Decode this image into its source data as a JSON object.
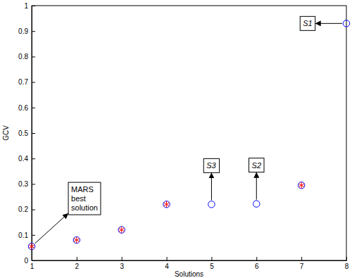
{
  "chart_data": {
    "type": "scatter",
    "x_label": "Solutions",
    "y_label": "GCV",
    "x": [
      1,
      2,
      3,
      4,
      5,
      6,
      7,
      8
    ],
    "xlim": [
      1,
      8
    ],
    "xticks": [
      1,
      2,
      3,
      4,
      5,
      6,
      7,
      8
    ],
    "ylim": [
      0,
      1
    ],
    "yticks": [
      0,
      0.1,
      0.2,
      0.3,
      0.4,
      0.5,
      0.6,
      0.7,
      0.8,
      0.9,
      1
    ],
    "grid": false,
    "series": [
      {
        "color": "#0000ff",
        "marker": "circle",
        "values": [
          0.055,
          0.08,
          0.12,
          0.22,
          0.22,
          0.222,
          0.295,
          0.93
        ]
      },
      {
        "color": "#ff0000",
        "marker": "asterisk",
        "values": [
          0.055,
          0.08,
          0.12,
          0.22,
          null,
          null,
          0.295,
          null
        ]
      }
    ],
    "annotations": [
      {
        "text": "MARS best solution",
        "x": 1,
        "y": 0.055
      },
      {
        "text": "S3",
        "x": 5,
        "y": 0.22
      },
      {
        "text": "S2",
        "x": 6,
        "y": 0.222
      },
      {
        "text": "S1",
        "x": 8,
        "y": 0.93
      }
    ]
  }
}
